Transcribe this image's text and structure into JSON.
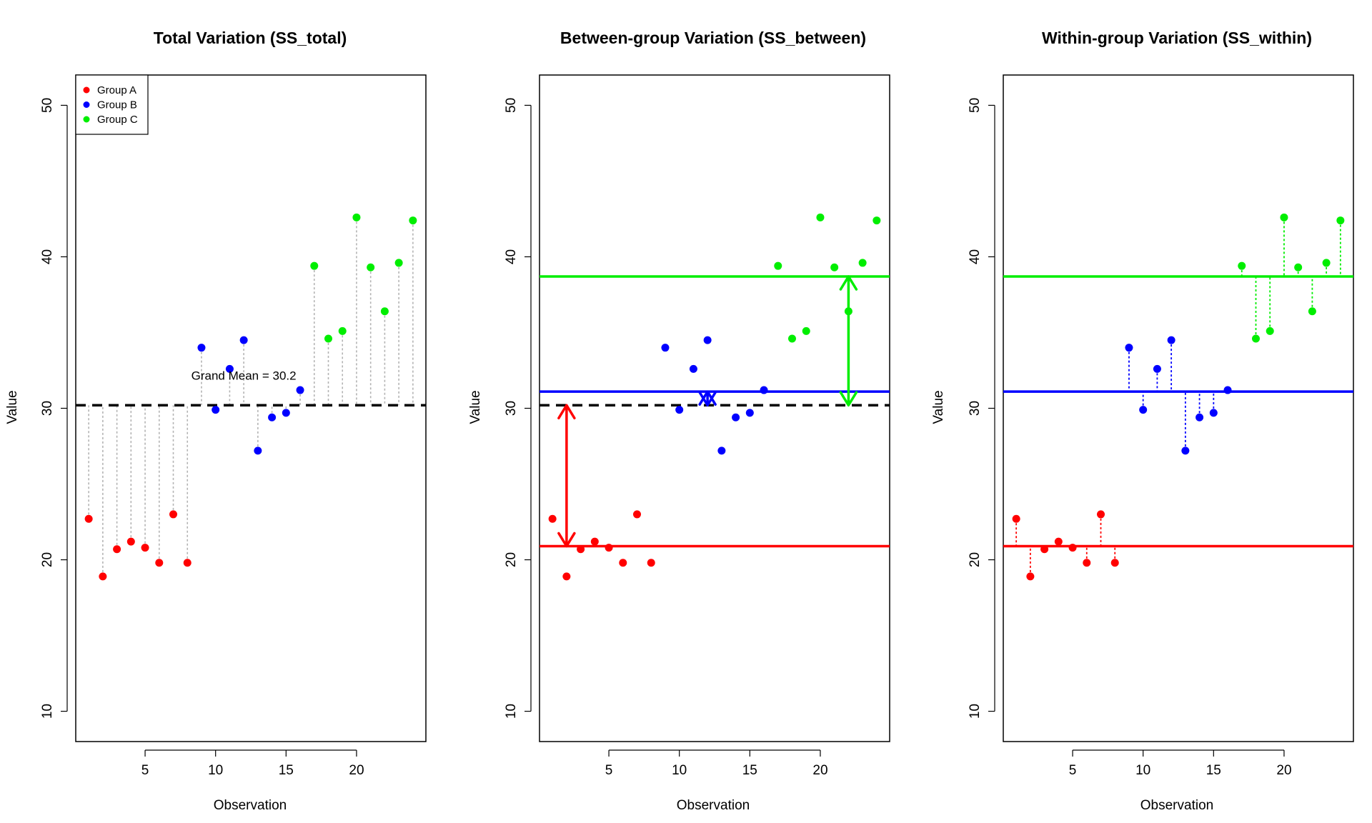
{
  "colors": {
    "A": "#ff0000",
    "B": "#0000ff",
    "C": "#00ee00",
    "grand_mean": "#000000",
    "residual_total": "#b3b3b3"
  },
  "chart_data": [
    {
      "type": "scatter",
      "variant": "total",
      "title": "Total Variation (SS_total)",
      "xlabel": "Observation",
      "ylabel": "Value",
      "xlim": [
        0.08,
        24.92
      ],
      "ylim": [
        8.0,
        52.0
      ],
      "xticks": [
        5,
        10,
        15,
        20
      ],
      "yticks": [
        10,
        20,
        30,
        40,
        50
      ],
      "grand_mean": 30.2,
      "grand_mean_label": "Grand Mean = 30.2",
      "legend": {
        "position": "top-left",
        "entries": [
          {
            "label": "Group A",
            "group": "A"
          },
          {
            "label": "Group B",
            "group": "B"
          },
          {
            "label": "Group C",
            "group": "C"
          }
        ]
      }
    },
    {
      "type": "scatter",
      "variant": "between",
      "title": "Between-group Variation (SS_between)",
      "xlabel": "Observation",
      "ylabel": "Value",
      "xlim": [
        0.08,
        24.92
      ],
      "ylim": [
        8.0,
        52.0
      ],
      "xticks": [
        5,
        10,
        15,
        20
      ],
      "yticks": [
        10,
        20,
        30,
        40,
        50
      ],
      "grand_mean": 30.2
    },
    {
      "type": "scatter",
      "variant": "within",
      "title": "Within-group Variation (SS_within)",
      "xlabel": "Observation",
      "ylabel": "Value",
      "xlim": [
        0.08,
        24.92
      ],
      "ylim": [
        8.0,
        52.0
      ],
      "xticks": [
        5,
        10,
        15,
        20
      ],
      "yticks": [
        10,
        20,
        30,
        40,
        50
      ]
    }
  ],
  "observations": [
    {
      "x": 1,
      "y": 22.7,
      "group": "A"
    },
    {
      "x": 2,
      "y": 18.9,
      "group": "A"
    },
    {
      "x": 3,
      "y": 20.7,
      "group": "A"
    },
    {
      "x": 4,
      "y": 21.2,
      "group": "A"
    },
    {
      "x": 5,
      "y": 20.8,
      "group": "A"
    },
    {
      "x": 6,
      "y": 19.8,
      "group": "A"
    },
    {
      "x": 7,
      "y": 23.0,
      "group": "A"
    },
    {
      "x": 8,
      "y": 19.8,
      "group": "A"
    },
    {
      "x": 9,
      "y": 34.0,
      "group": "B"
    },
    {
      "x": 10,
      "y": 29.9,
      "group": "B"
    },
    {
      "x": 11,
      "y": 32.6,
      "group": "B"
    },
    {
      "x": 12,
      "y": 34.5,
      "group": "B"
    },
    {
      "x": 13,
      "y": 27.2,
      "group": "B"
    },
    {
      "x": 14,
      "y": 29.4,
      "group": "B"
    },
    {
      "x": 15,
      "y": 29.7,
      "group": "B"
    },
    {
      "x": 16,
      "y": 31.2,
      "group": "B"
    },
    {
      "x": 17,
      "y": 39.4,
      "group": "C"
    },
    {
      "x": 18,
      "y": 34.6,
      "group": "C"
    },
    {
      "x": 19,
      "y": 35.1,
      "group": "C"
    },
    {
      "x": 20,
      "y": 42.6,
      "group": "C"
    },
    {
      "x": 21,
      "y": 39.3,
      "group": "C"
    },
    {
      "x": 22,
      "y": 36.4,
      "group": "C"
    },
    {
      "x": 23,
      "y": 39.6,
      "group": "C"
    },
    {
      "x": 24,
      "y": 42.4,
      "group": "C"
    }
  ],
  "group_means": {
    "A": 20.9,
    "B": 31.1,
    "C": 38.7
  },
  "between_arrows": [
    {
      "x": 2,
      "from": 20.9,
      "to": 30.2,
      "group": "A"
    },
    {
      "x": 12,
      "from": 31.1,
      "to": 30.2,
      "group": "B"
    },
    {
      "x": 22,
      "from": 38.7,
      "to": 30.2,
      "group": "C"
    }
  ]
}
